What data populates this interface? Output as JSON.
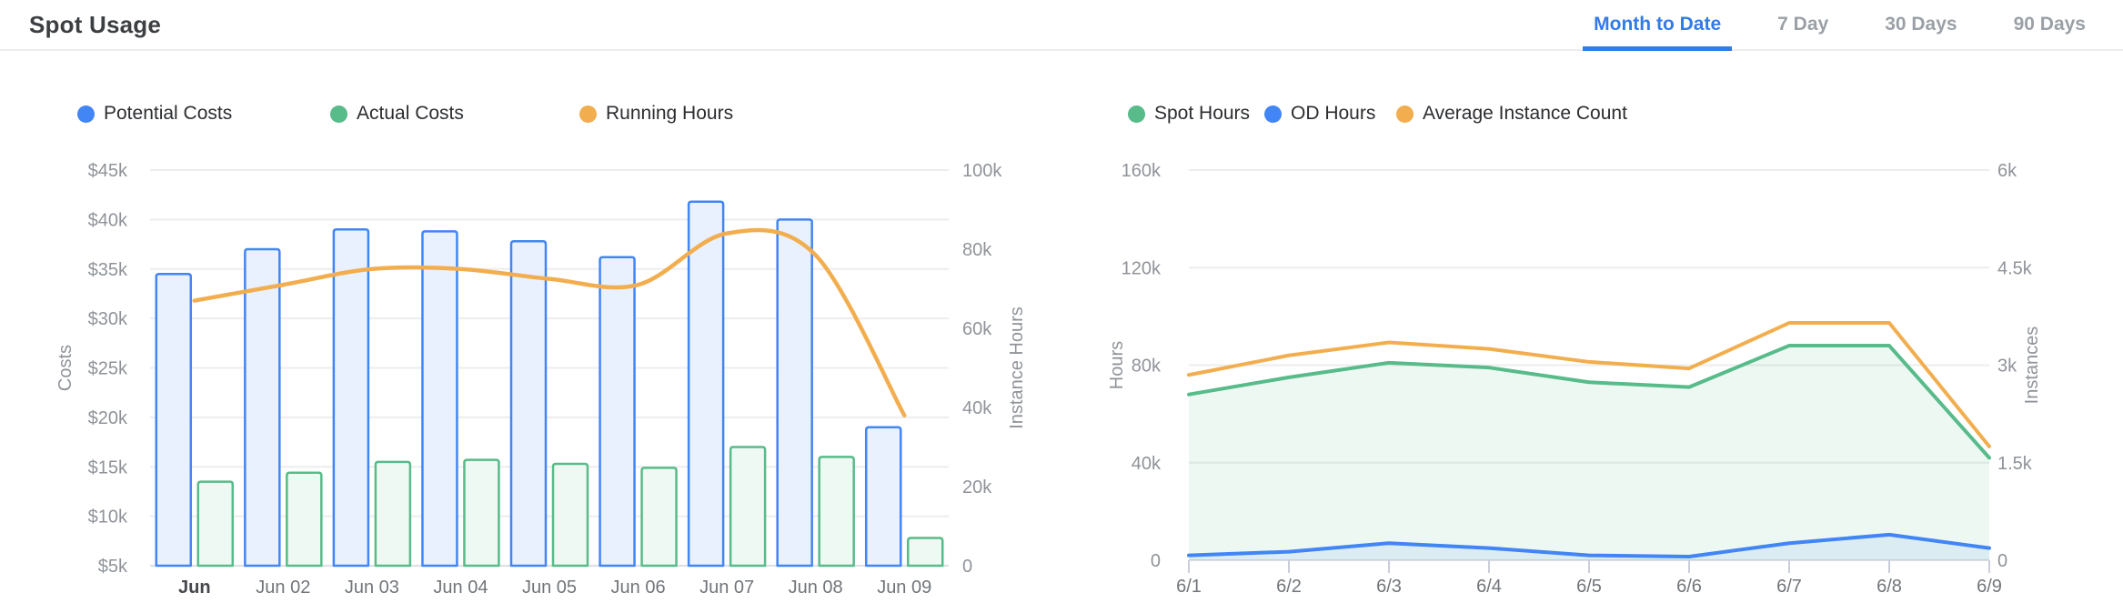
{
  "header": {
    "title": "Spot Usage",
    "tabs": [
      {
        "label": "Month to Date",
        "active": true
      },
      {
        "label": "7 Day",
        "active": false
      },
      {
        "label": "30 Days",
        "active": false
      },
      {
        "label": "90 Days",
        "active": false
      }
    ]
  },
  "colors": {
    "accent_tab_blue": "#337be8",
    "series_blue": "#4285f4",
    "series_green": "#57bb8a",
    "series_orange": "#f2ae4e",
    "bar_blue_fill": "#e9f0fe",
    "bar_green_fill": "#eff9f3",
    "grid": "#ededed",
    "axis_text": "#8f9399"
  },
  "chart_data": [
    {
      "id": "costs",
      "type": "bar",
      "categories": [
        "Jun",
        "Jun 02",
        "Jun 03",
        "Jun 04",
        "Jun 05",
        "Jun 06",
        "Jun 07",
        "Jun 08",
        "Jun 09"
      ],
      "series": [
        {
          "name": "Potential Costs",
          "type": "bar",
          "axis": "left",
          "color": "#4285f4",
          "fill": "#e9f0fe",
          "values": [
            34500,
            37000,
            39000,
            38800,
            37800,
            36200,
            41800,
            40000,
            19000
          ]
        },
        {
          "name": "Actual Costs",
          "type": "bar",
          "axis": "left",
          "color": "#57bb8a",
          "fill": "#eff9f3",
          "values": [
            13500,
            14400,
            15500,
            15700,
            15300,
            14900,
            17000,
            16000,
            7800
          ]
        },
        {
          "name": "Running Hours",
          "type": "line",
          "axis": "right",
          "color": "#f2ae4e",
          "smooth": true,
          "values": [
            67000,
            71000,
            75000,
            75000,
            72500,
            71000,
            84000,
            78500,
            38000
          ]
        }
      ],
      "axes": {
        "left": {
          "label": "Costs",
          "min": 5000,
          "max": 45000,
          "ticks": [
            "$45k",
            "$40k",
            "$35k",
            "$30k",
            "$25k",
            "$20k",
            "$15k",
            "$10k",
            "$5k"
          ]
        },
        "right": {
          "label": "Instance Hours",
          "min": 0,
          "max": 100000,
          "ticks": [
            "100k",
            "80k",
            "60k",
            "40k",
            "20k",
            "0"
          ]
        }
      },
      "x_first_emphasis": true,
      "legend": [
        "Potential Costs",
        "Actual Costs",
        "Running Hours"
      ]
    },
    {
      "id": "usage",
      "type": "area",
      "categories": [
        "6/1",
        "6/2",
        "6/3",
        "6/4",
        "6/5",
        "6/6",
        "6/7",
        "6/8",
        "6/9"
      ],
      "series": [
        {
          "name": "Spot Hours",
          "type": "line",
          "axis": "left",
          "color": "#57bb8a",
          "area": "rgba(87,187,138,0.10)",
          "values": [
            68000,
            75000,
            81000,
            79000,
            73000,
            71000,
            88000,
            88000,
            42000
          ]
        },
        {
          "name": "OD Hours",
          "type": "line",
          "axis": "left",
          "color": "#4285f4",
          "area": "rgba(66,133,244,0.10)",
          "values": [
            2000,
            3500,
            7000,
            5000,
            2000,
            1500,
            7000,
            10500,
            5000
          ]
        },
        {
          "name": "Average Instance Count",
          "type": "line",
          "axis": "right",
          "color": "#f2ae4e",
          "values": [
            2850,
            3150,
            3350,
            3250,
            3050,
            2950,
            3650,
            3650,
            1750
          ]
        }
      ],
      "axes": {
        "left": {
          "label": "Hours",
          "min": 0,
          "max": 160000,
          "ticks": [
            "160k",
            "120k",
            "80k",
            "40k",
            "0"
          ]
        },
        "right": {
          "label": "Instances",
          "min": 0,
          "max": 6000,
          "ticks": [
            "6k",
            "4.5k",
            "3k",
            "1.5k",
            "0"
          ]
        }
      },
      "x_ticks": true,
      "legend": [
        "Spot Hours",
        "OD Hours",
        "Average Instance Count"
      ]
    }
  ]
}
